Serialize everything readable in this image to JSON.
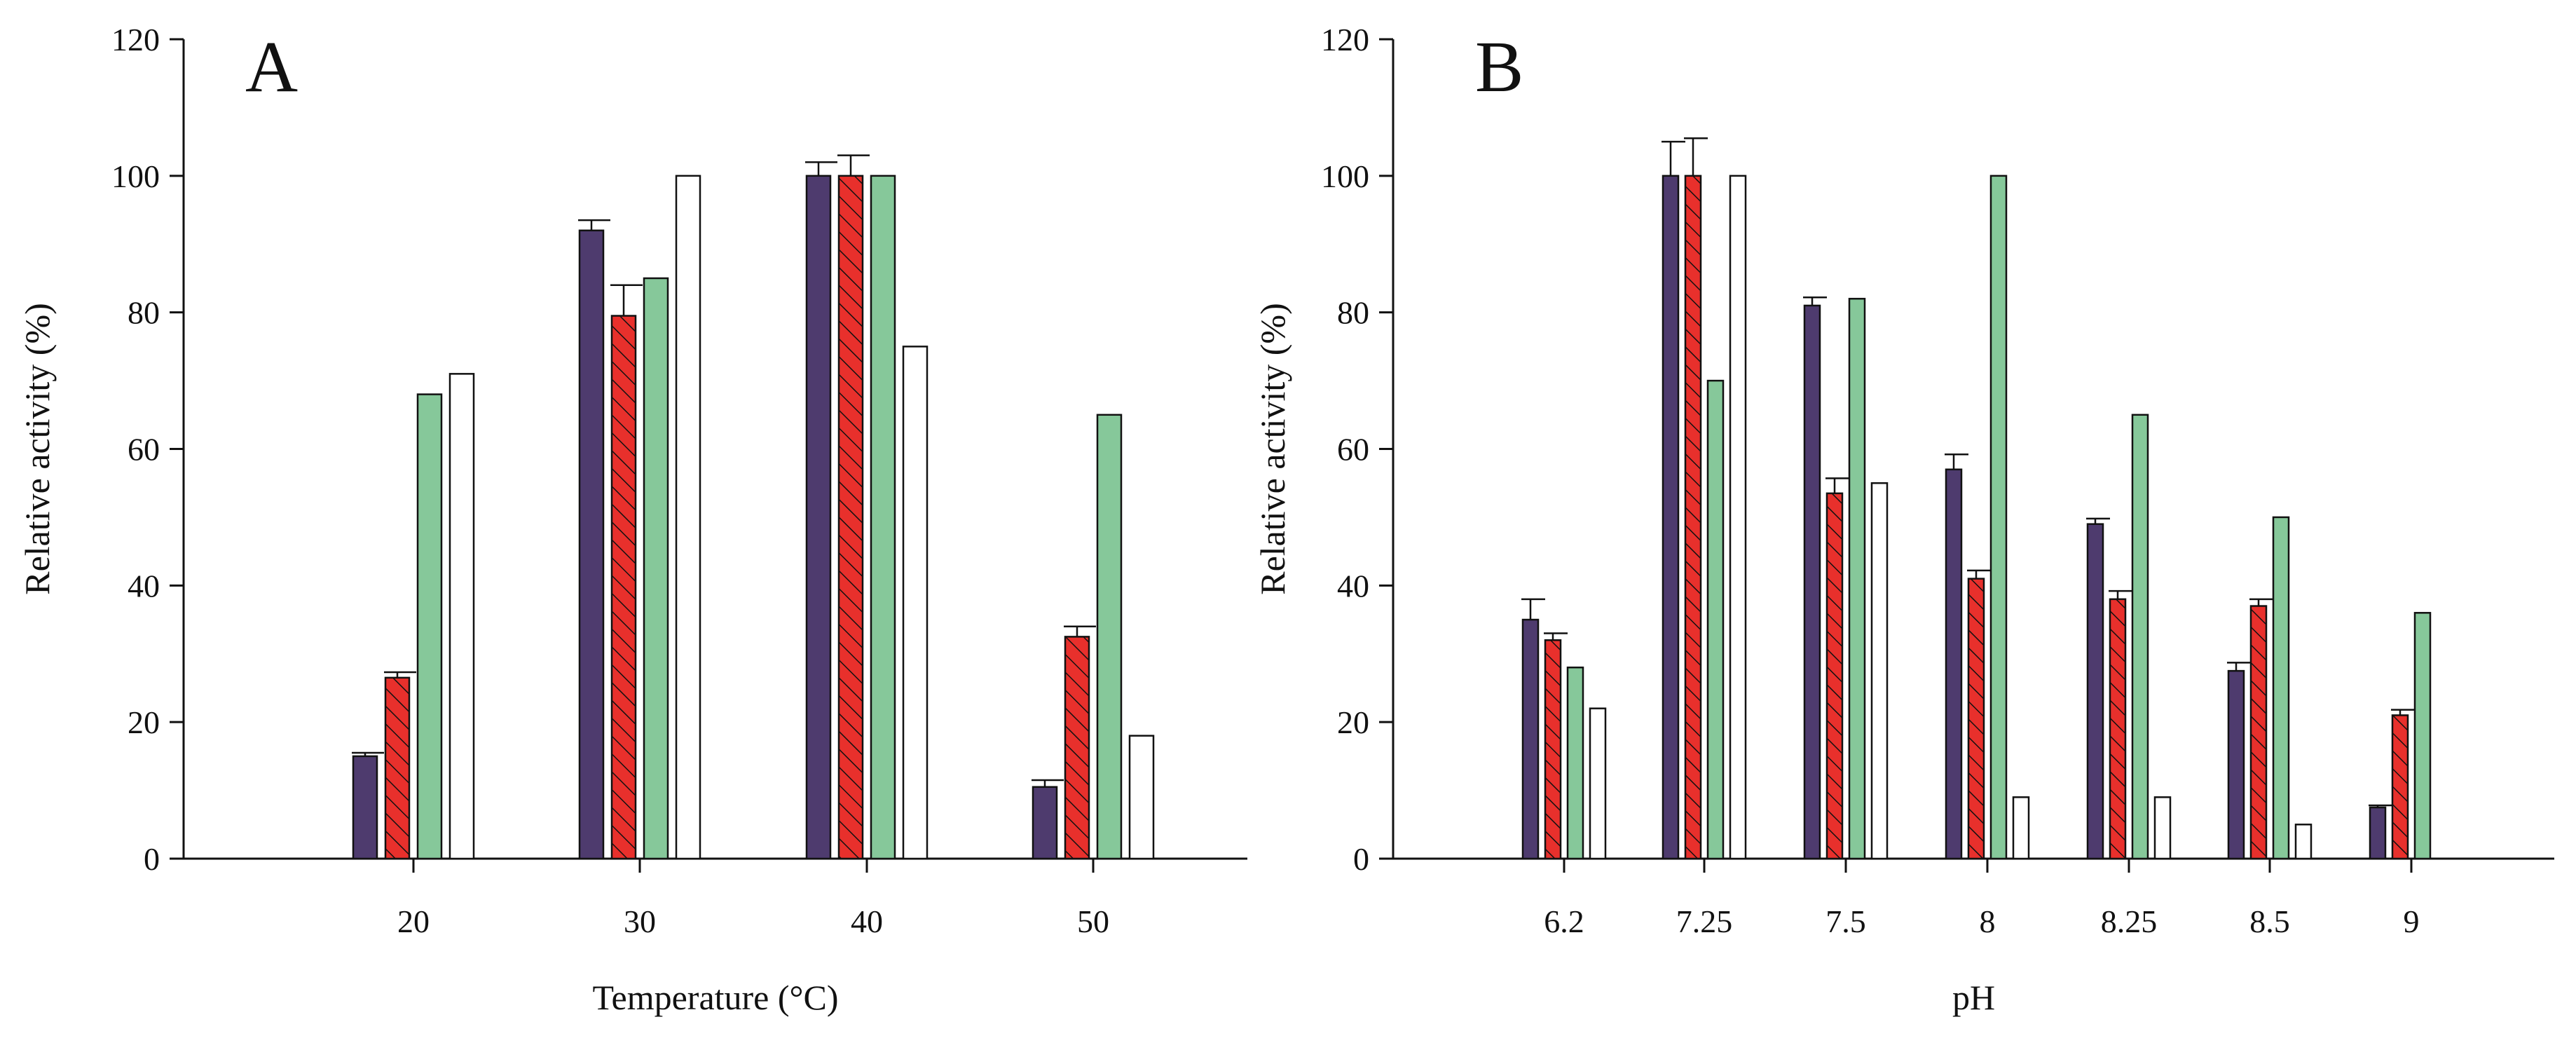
{
  "colors": {
    "purple": "#4e3b6e",
    "red": "#e8302c",
    "green": "#86c89a",
    "white": "#ffffff",
    "stroke": "#111111"
  },
  "chart_data": [
    {
      "type": "bar",
      "panel_label": "A",
      "xlabel": "Temperature (°C)",
      "ylabel": "Relative activity (%)",
      "ylim": [
        0,
        120
      ],
      "yticks": [
        "0",
        "20",
        "40",
        "60",
        "80",
        "100",
        "120"
      ],
      "categories": [
        "20",
        "30",
        "40",
        "50"
      ],
      "series": [
        {
          "values": [
            15,
            92,
            100,
            10.5
          ],
          "errors": [
            0.5,
            1.5,
            2,
            1
          ],
          "fill": "purple"
        },
        {
          "values": [
            26.5,
            79.5,
            100,
            32.5
          ],
          "errors": [
            0.8,
            4.5,
            3,
            1.5
          ],
          "fill": "red",
          "hatched": true
        },
        {
          "values": [
            68,
            85,
            100,
            65
          ],
          "errors": null,
          "fill": "green"
        },
        {
          "values": [
            71,
            100,
            75,
            18
          ],
          "errors": null,
          "fill": "white"
        }
      ]
    },
    {
      "type": "bar",
      "panel_label": "B",
      "xlabel": "pH",
      "ylabel": "Relative activity (%)",
      "ylim": [
        0,
        120
      ],
      "yticks": [
        "0",
        "20",
        "40",
        "60",
        "80",
        "100",
        "120"
      ],
      "categories": [
        "6.2",
        "7.25",
        "7.5",
        "8",
        "8.25",
        "8.5",
        "9"
      ],
      "series": [
        {
          "values": [
            35,
            100,
            81,
            57,
            49,
            27.5,
            7.5
          ],
          "errors": [
            3,
            5,
            1.2,
            2.2,
            0.8,
            1.2,
            0.3
          ],
          "fill": "purple"
        },
        {
          "values": [
            32,
            100,
            53.5,
            41,
            38,
            37,
            21
          ],
          "errors": [
            1,
            5.5,
            2.2,
            1.2,
            1.2,
            1,
            0.8
          ],
          "fill": "red",
          "hatched": true
        },
        {
          "values": [
            28,
            70,
            82,
            100,
            65,
            50,
            36
          ],
          "errors": null,
          "fill": "green"
        },
        {
          "values": [
            22,
            100,
            55,
            9,
            9,
            5,
            null
          ],
          "errors": null,
          "fill": "white"
        }
      ]
    }
  ]
}
